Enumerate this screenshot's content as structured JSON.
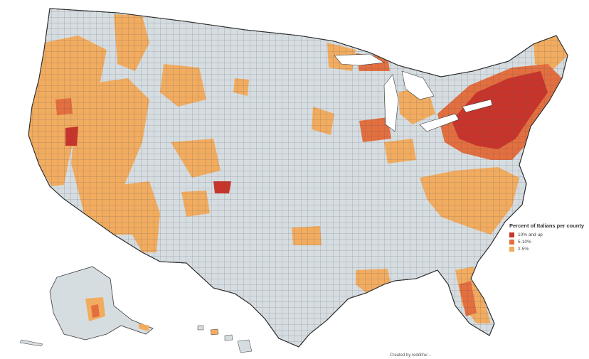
{
  "legend": {
    "title": "Percent of Italians per county",
    "items": [
      {
        "label": "10% and up",
        "color": "#c9342a"
      },
      {
        "label": "5-10%",
        "color": "#e36f3f"
      },
      {
        "label": "2-5%",
        "color": "#f2ac5f"
      }
    ]
  },
  "credit": "Created by reddit/u/...",
  "colors": {
    "base": "#d6dde1",
    "border": "#3a3a3a",
    "background": "#ffffff"
  }
}
